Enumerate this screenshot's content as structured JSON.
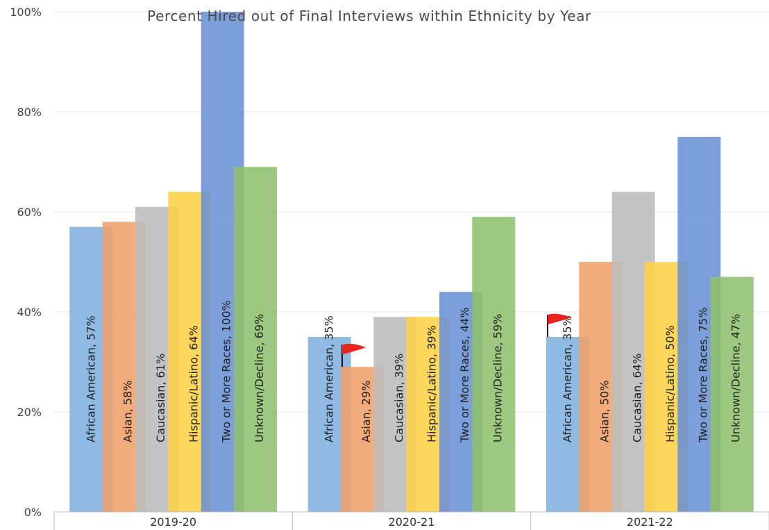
{
  "chart_data": {
    "type": "bar",
    "title": "Percent Hired out of Final Interviews within Ethnicity by Year",
    "categories": [
      "2019-20",
      "2020-21",
      "2021-22"
    ],
    "ylim": [
      0,
      100
    ],
    "yticks": [
      "0%",
      "20%",
      "40%",
      "60%",
      "80%",
      "100%"
    ],
    "series": [
      {
        "name": "African American",
        "values": [
          57,
          35,
          35
        ],
        "labels": [
          "African American, 57%",
          "African American, 35%",
          "African American, 35%"
        ],
        "color": "#7fb1e0"
      },
      {
        "name": "Asian",
        "values": [
          58,
          29,
          50
        ],
        "labels": [
          "Asian, 58%",
          "Asian, 29%",
          "Asian, 50%"
        ],
        "color": "#f0a06a"
      },
      {
        "name": "Caucasian",
        "values": [
          61,
          39,
          64
        ],
        "labels": [
          "Caucasian, 61%",
          "Caucasian, 39%",
          "Caucasian, 64%"
        ],
        "color": "#bcbcbc"
      },
      {
        "name": "Hispanic/Latino",
        "values": [
          64,
          39,
          50
        ],
        "labels": [
          "Hispanic/Latino, 64%",
          "Hispanic/Latino, 39%",
          "Hispanic/Latino, 50%"
        ],
        "color": "#fdd046"
      },
      {
        "name": "Two or More Races",
        "values": [
          100,
          44,
          75
        ],
        "labels": [
          "Two or More Races, 100%",
          "Two or More Races, 44%",
          "Two or More Races, 75%"
        ],
        "color": "#6a92d6"
      },
      {
        "name": "Unknown/Decline",
        "values": [
          69,
          59,
          47
        ],
        "labels": [
          "Unknown/Decline, 69%",
          "Unknown/Decline, 59%",
          "Unknown/Decline, 47%"
        ],
        "color": "#8fc06d"
      }
    ],
    "flags": [
      {
        "series": 1,
        "category": 1
      },
      {
        "series": 0,
        "category": 2
      }
    ],
    "flag_color": "#e8241c",
    "grid": true,
    "legend": "none"
  }
}
